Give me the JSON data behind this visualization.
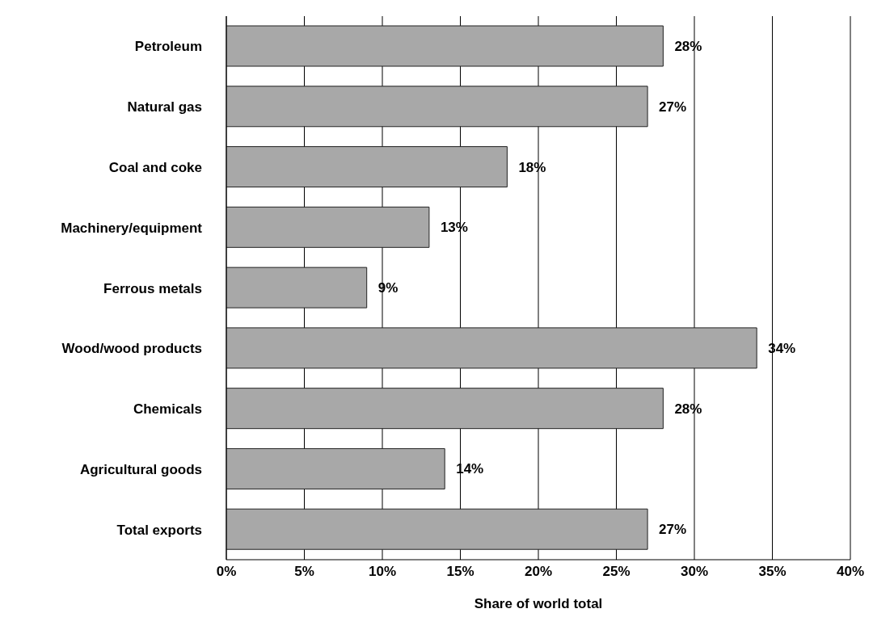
{
  "chart_data": {
    "type": "bar",
    "orientation": "horizontal",
    "xlabel": "Share of world total",
    "categories": [
      "Petroleum",
      "Natural gas",
      "Coal and coke",
      "Machinery/equipment",
      "Ferrous metals",
      "Wood/wood products",
      "Chemicals",
      "Agricultural goods",
      "Total exports"
    ],
    "values": [
      28,
      27,
      18,
      13,
      9,
      34,
      28,
      14,
      27
    ],
    "value_labels": [
      "28%",
      "27%",
      "18%",
      "13%",
      "9%",
      "34%",
      "28%",
      "14%",
      "27%"
    ],
    "color": "#a8a8a8",
    "xlim": [
      0,
      40
    ],
    "xticks": [
      {
        "value": 0,
        "label": "0%"
      },
      {
        "value": 5,
        "label": "5%"
      },
      {
        "value": 10,
        "label": "10%"
      },
      {
        "value": 15,
        "label": "15%"
      },
      {
        "value": 20,
        "label": "20%"
      },
      {
        "value": 25,
        "label": "25%"
      },
      {
        "value": 30,
        "label": "30%"
      },
      {
        "value": 35,
        "label": "35%"
      },
      {
        "value": 40,
        "label": "40%"
      }
    ],
    "grid": "x",
    "legend": false
  }
}
